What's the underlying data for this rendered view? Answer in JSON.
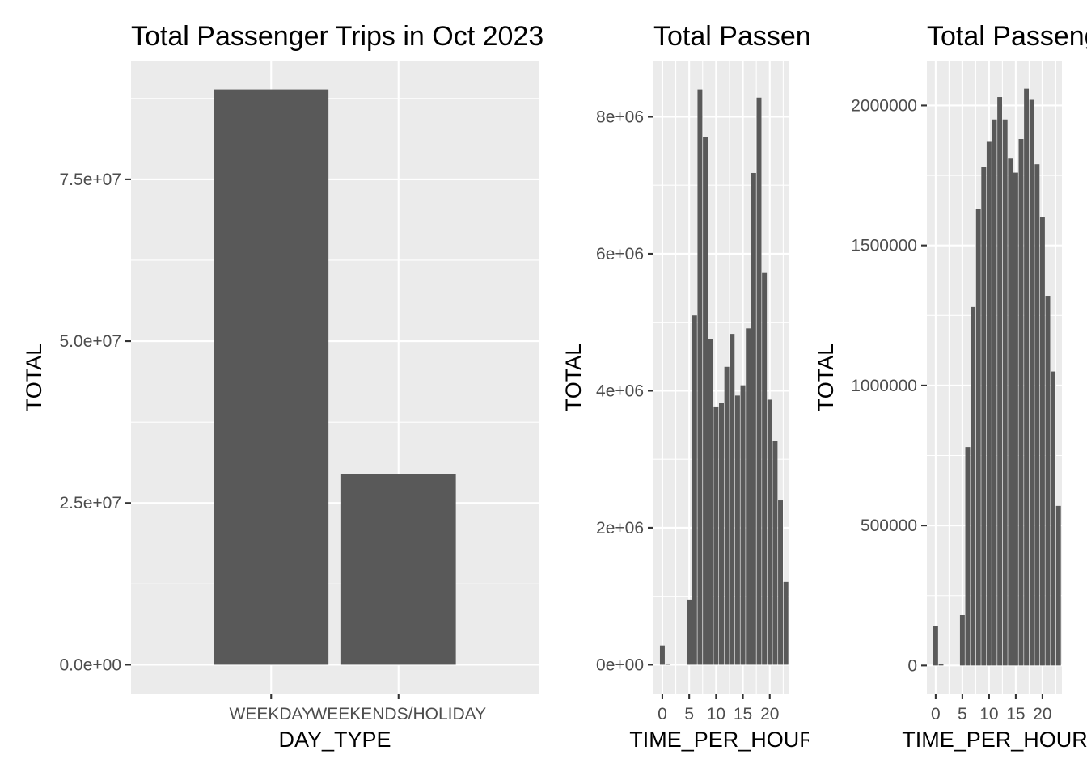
{
  "chart_data": [
    {
      "type": "bar",
      "title": "Total Passenger Trips in Oct 2023",
      "xlabel": "DAY_TYPE",
      "ylabel": "TOTAL",
      "categories": [
        "WEEKDAY",
        "WEEKENDS/HOLIDAY"
      ],
      "values": [
        88900000,
        29400000
      ],
      "ylim": [
        -4445000,
        93345000
      ],
      "yticks": [
        0,
        25000000,
        50000000,
        75000000
      ],
      "ytick_labels": [
        "0.0e+00",
        "2.5e+07",
        "5.0e+07",
        "7.5e+07"
      ],
      "bar_color": "#595959",
      "panel_color": "#ebebeb",
      "grid": true
    },
    {
      "type": "bar",
      "title": "Total Passenger Trips",
      "xlabel": "TIME_PER_HOUR",
      "ylabel": "TOTAL",
      "x": [
        0,
        1,
        2,
        3,
        4,
        5,
        6,
        7,
        8,
        9,
        10,
        11,
        12,
        13,
        14,
        15,
        16,
        17,
        18,
        19,
        20,
        21,
        22,
        23
      ],
      "values": [
        280000,
        10000,
        0,
        0,
        0,
        950000,
        5100000,
        8400000,
        7700000,
        4750000,
        3770000,
        3820000,
        4350000,
        4830000,
        3930000,
        4080000,
        4910000,
        7180000,
        8280000,
        5720000,
        3870000,
        3270000,
        2400000,
        1210000
      ],
      "xlim": [
        -1.65,
        23.65
      ],
      "xticks": [
        0,
        5,
        10,
        15,
        20
      ],
      "xtick_labels": [
        "0",
        "5",
        "10",
        "15",
        "20"
      ],
      "ylim": [
        -420000,
        8820000
      ],
      "yticks": [
        0,
        2000000,
        4000000,
        6000000,
        8000000
      ],
      "ytick_labels": [
        "0e+00",
        "2e+06",
        "4e+06",
        "6e+06",
        "8e+06"
      ],
      "bar_color": "#595959",
      "panel_color": "#ebebeb",
      "grid": true
    },
    {
      "type": "bar",
      "title": "Total Passenger Trips",
      "xlabel": "TIME_PER_HOUR",
      "ylabel": "TOTAL",
      "x": [
        0,
        1,
        2,
        3,
        4,
        5,
        6,
        7,
        8,
        9,
        10,
        11,
        12,
        13,
        14,
        15,
        16,
        17,
        18,
        19,
        20,
        21,
        22,
        23
      ],
      "values": [
        140000,
        5000,
        0,
        0,
        0,
        180000,
        780000,
        1280000,
        1630000,
        1780000,
        1870000,
        1950000,
        2030000,
        1950000,
        1810000,
        1760000,
        1880000,
        2060000,
        2020000,
        1790000,
        1600000,
        1320000,
        1050000,
        570000
      ],
      "xlim": [
        -1.65,
        23.65
      ],
      "xticks": [
        0,
        5,
        10,
        15,
        20
      ],
      "xtick_labels": [
        "0",
        "5",
        "10",
        "15",
        "20"
      ],
      "ylim": [
        -100000,
        2160000
      ],
      "yticks": [
        0,
        500000,
        1000000,
        1500000,
        2000000
      ],
      "ytick_labels": [
        "0",
        "500000",
        "1000000",
        "1500000",
        "2000000"
      ],
      "bar_color": "#595959",
      "panel_color": "#ebebeb",
      "grid": true
    }
  ]
}
